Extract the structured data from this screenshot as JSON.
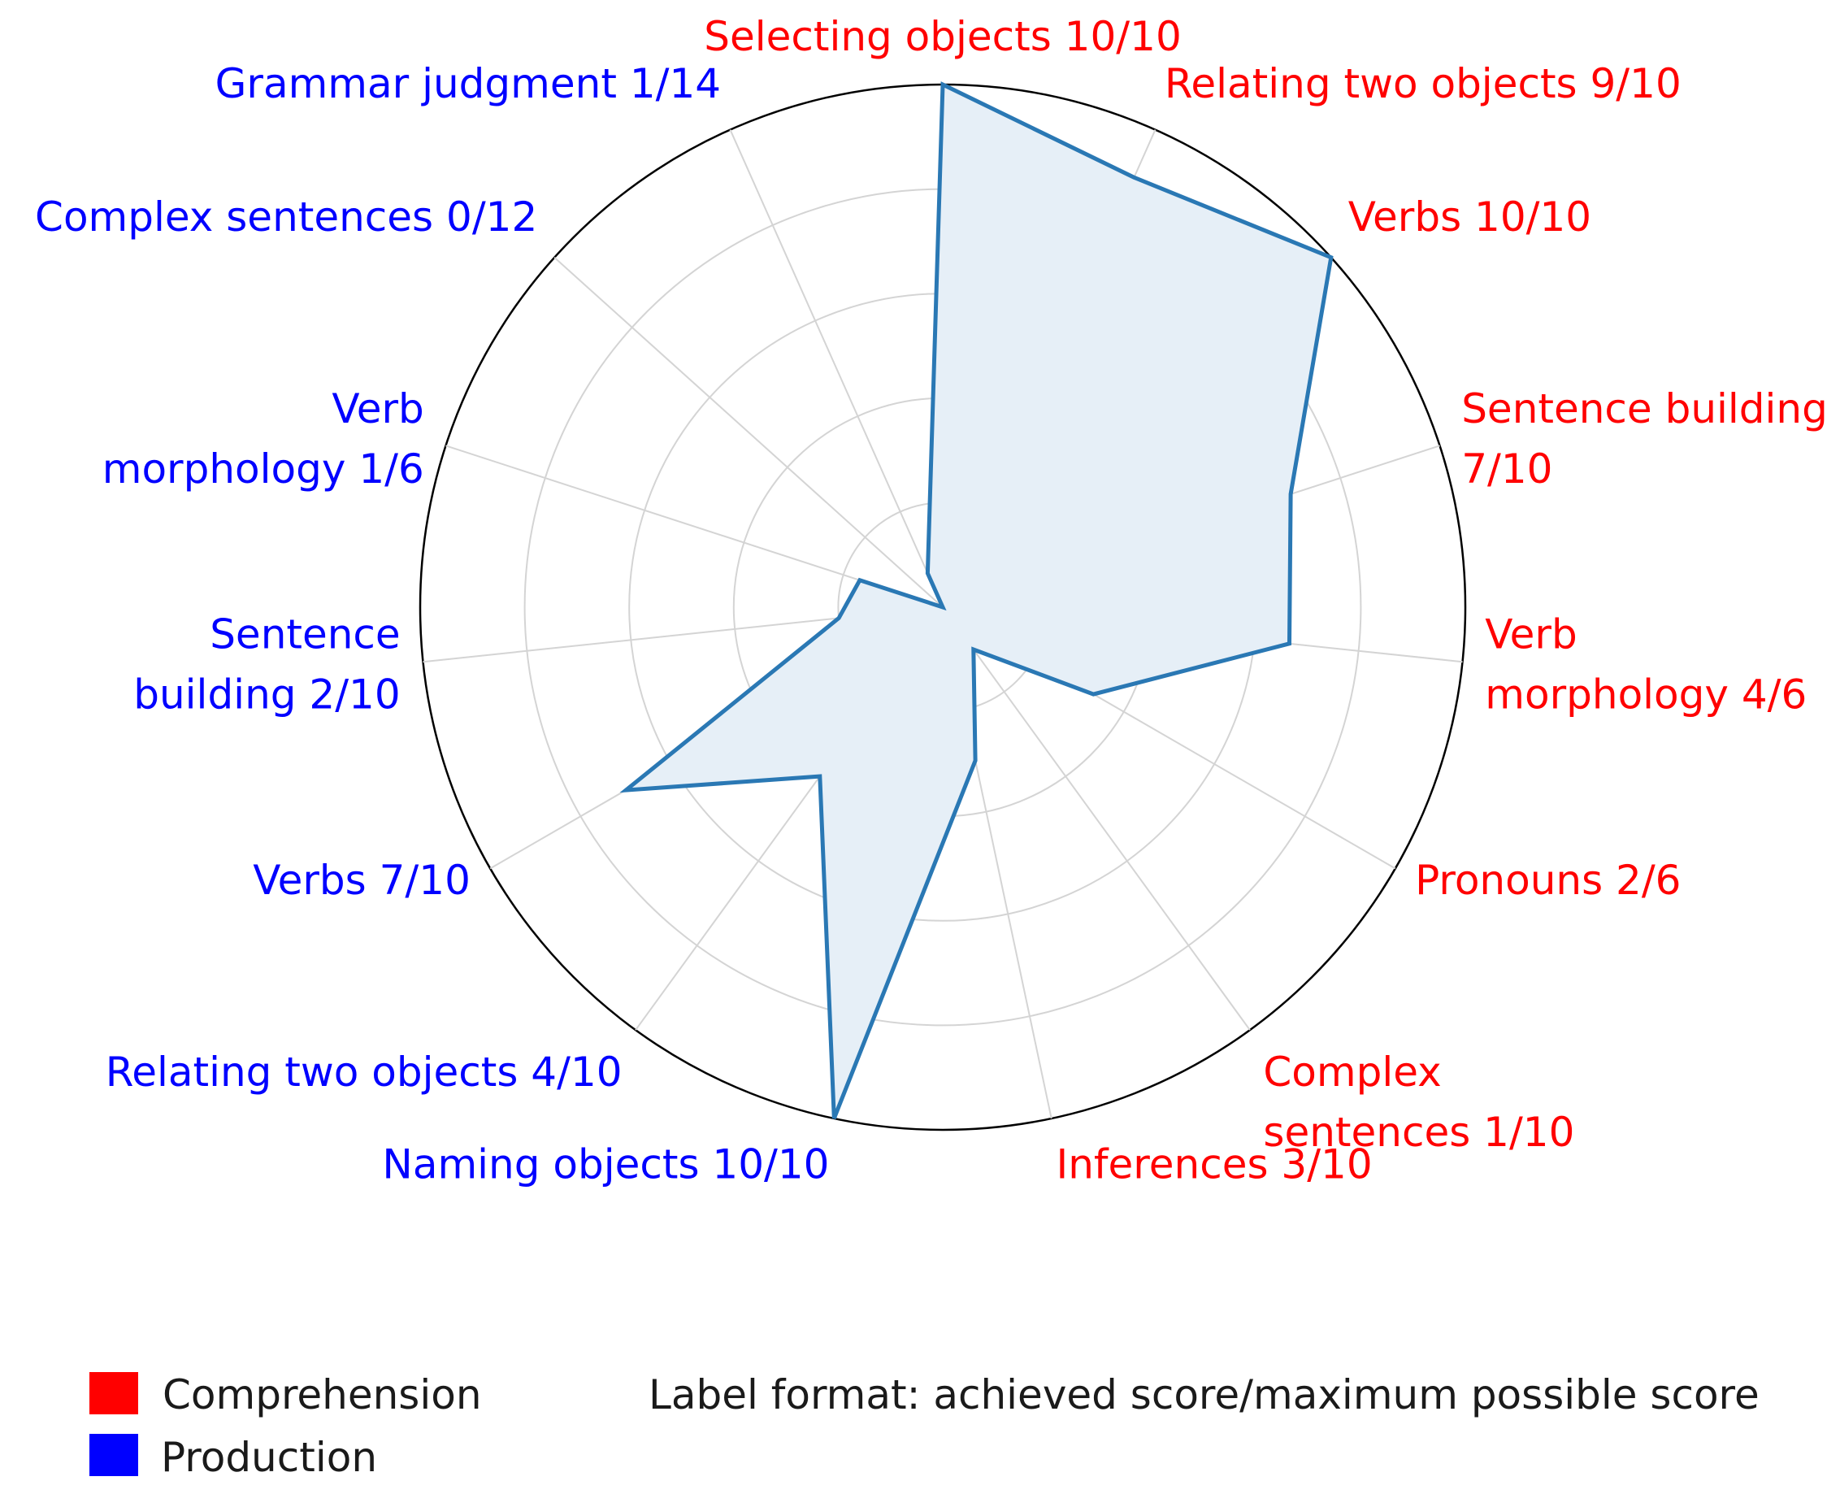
{
  "chart_data": {
    "type": "radar",
    "scale_max": 1,
    "grid": true,
    "gridline_levels": [
      0.2,
      0.4,
      0.6,
      0.8
    ],
    "axes": [
      {
        "group": "Comprehension",
        "lines": [
          "Selecting objects 10/10"
        ],
        "value": 1.0
      },
      {
        "group": "Comprehension",
        "lines": [
          "Relating two objects 9/10"
        ],
        "value": 0.9
      },
      {
        "group": "Comprehension",
        "lines": [
          "Verbs 10/10"
        ],
        "value": 1.0
      },
      {
        "group": "Comprehension",
        "lines": [
          "Sentence building",
          "7/10"
        ],
        "value": 0.7
      },
      {
        "group": "Comprehension",
        "lines": [
          "Verb",
          "morphology 4/6"
        ],
        "value": 0.667
      },
      {
        "group": "Comprehension",
        "lines": [
          "Pronouns 2/6"
        ],
        "value": 0.333
      },
      {
        "group": "Comprehension",
        "lines": [
          "Complex",
          "sentences 1/10"
        ],
        "value": 0.1
      },
      {
        "group": "Comprehension",
        "lines": [
          "Inferences 3/10"
        ],
        "value": 0.3
      },
      {
        "group": "Production",
        "lines": [
          "Naming objects 10/10"
        ],
        "value": 1.0
      },
      {
        "group": "Production",
        "lines": [
          "Relating two objects 4/10"
        ],
        "value": 0.4
      },
      {
        "group": "Production",
        "lines": [
          "Verbs 7/10"
        ],
        "value": 0.7
      },
      {
        "group": "Production",
        "lines": [
          "Sentence",
          "building 2/10"
        ],
        "value": 0.2
      },
      {
        "group": "Production",
        "lines": [
          "Verb",
          "morphology 1/6"
        ],
        "value": 0.167
      },
      {
        "group": "Production",
        "lines": [
          "Complex sentences 0/12"
        ],
        "value": 0.0
      },
      {
        "group": "Production",
        "lines": [
          "Grammar judgment 1/14"
        ],
        "value": 0.071
      }
    ],
    "series": [
      {
        "color": "#2a78b4",
        "fill": "#e6eff7"
      }
    ],
    "legend": {
      "placement": "bottom-left",
      "items": [
        {
          "label": "Comprehension",
          "color": "#ff0000"
        },
        {
          "label": "Production",
          "color": "#0000ff"
        }
      ]
    },
    "note": "Label format: achieved score/maximum possible score"
  }
}
